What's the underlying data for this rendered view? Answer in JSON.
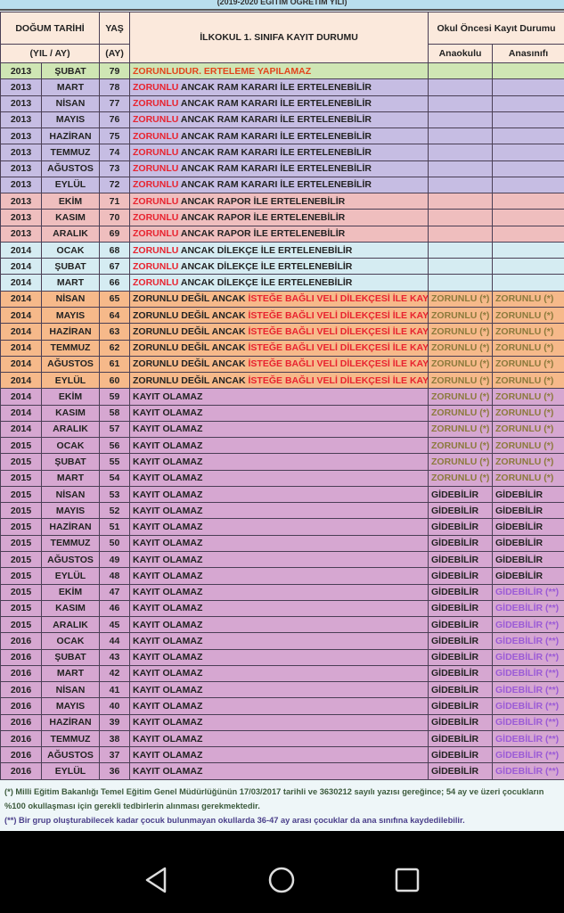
{
  "title": "(2019-2020 EĞİTİM ÖĞRETİM YILI)",
  "header": {
    "birth": "DOĞUM TARİHİ",
    "birth_sub": "(YIL / AY)",
    "age": "YAŞ",
    "age_sub": "(AY)",
    "status": "İLKOKUL 1. SINIFA KAYIT DURUMU",
    "preschool": "Okul Öncesi Kayıt Durumu",
    "kindergarten": "Anaokulu",
    "preclass": "Anasınıfı"
  },
  "colors": {
    "green": "#cfe6b4",
    "purple": "#c6bde3",
    "pink": "#efbebe",
    "blue": "#d5ecf2",
    "orange": "#f6b98a",
    "mauve": "#d6a7d1"
  },
  "rows": [
    {
      "y": "2013",
      "m": "ŞUBAT",
      "a": "79",
      "bg": "green",
      "s": [
        {
          "t": "ZORUNLUDUR. ERTELEME YAPILAMAZ",
          "c": "or"
        }
      ],
      "k": "",
      "p": ""
    },
    {
      "y": "2013",
      "m": "MART",
      "a": "78",
      "bg": "purple",
      "s": [
        {
          "t": "ZORUNLU",
          "c": "red"
        },
        {
          "t": " ANCAK RAM KARARI İLE ERTELENEBİLİR",
          "c": ""
        }
      ],
      "k": "",
      "p": ""
    },
    {
      "y": "2013",
      "m": "NİSAN",
      "a": "77",
      "bg": "purple",
      "s": [
        {
          "t": "ZORUNLU",
          "c": "red"
        },
        {
          "t": " ANCAK RAM KARARI İLE ERTELENEBİLİR",
          "c": ""
        }
      ],
      "k": "",
      "p": ""
    },
    {
      "y": "2013",
      "m": "MAYIS",
      "a": "76",
      "bg": "purple",
      "s": [
        {
          "t": "ZORUNLU",
          "c": "red"
        },
        {
          "t": " ANCAK RAM KARARI İLE ERTELENEBİLİR",
          "c": ""
        }
      ],
      "k": "",
      "p": ""
    },
    {
      "y": "2013",
      "m": "HAZİRAN",
      "a": "75",
      "bg": "purple",
      "s": [
        {
          "t": "ZORUNLU",
          "c": "red"
        },
        {
          "t": " ANCAK RAM KARARI İLE ERTELENEBİLİR",
          "c": ""
        }
      ],
      "k": "",
      "p": ""
    },
    {
      "y": "2013",
      "m": "TEMMUZ",
      "a": "74",
      "bg": "purple",
      "s": [
        {
          "t": "ZORUNLU",
          "c": "red"
        },
        {
          "t": " ANCAK RAM KARARI İLE ERTELENEBİLİR",
          "c": ""
        }
      ],
      "k": "",
      "p": ""
    },
    {
      "y": "2013",
      "m": "AĞUSTOS",
      "a": "73",
      "bg": "purple",
      "s": [
        {
          "t": "ZORUNLU",
          "c": "red"
        },
        {
          "t": " ANCAK RAM KARARI İLE ERTELENEBİLİR",
          "c": ""
        }
      ],
      "k": "",
      "p": ""
    },
    {
      "y": "2013",
      "m": "EYLÜL",
      "a": "72",
      "bg": "purple",
      "s": [
        {
          "t": "ZORUNLU",
          "c": "red"
        },
        {
          "t": " ANCAK RAM KARARI İLE ERTELENEBİLİR",
          "c": ""
        }
      ],
      "k": "",
      "p": ""
    },
    {
      "y": "2013",
      "m": "EKİM",
      "a": "71",
      "bg": "pink",
      "s": [
        {
          "t": "ZORUNLU",
          "c": "red"
        },
        {
          "t": " ANCAK RAPOR İLE ERTELENEBİLİR",
          "c": ""
        }
      ],
      "k": "",
      "p": ""
    },
    {
      "y": "2013",
      "m": "KASIM",
      "a": "70",
      "bg": "pink",
      "s": [
        {
          "t": "ZORUNLU",
          "c": "red"
        },
        {
          "t": " ANCAK RAPOR İLE ERTELENEBİLİR",
          "c": ""
        }
      ],
      "k": "",
      "p": ""
    },
    {
      "y": "2013",
      "m": "ARALIK",
      "a": "69",
      "bg": "pink",
      "s": [
        {
          "t": "ZORUNLU",
          "c": "red"
        },
        {
          "t": " ANCAK RAPOR İLE ERTELENEBİLİR",
          "c": ""
        }
      ],
      "k": "",
      "p": ""
    },
    {
      "y": "2014",
      "m": "OCAK",
      "a": "68",
      "bg": "blue",
      "s": [
        {
          "t": "ZORUNLU",
          "c": "red"
        },
        {
          "t": " ANCAK DİLEKÇE İLE ERTELENEBİLİR",
          "c": ""
        }
      ],
      "k": "",
      "p": ""
    },
    {
      "y": "2014",
      "m": "ŞUBAT",
      "a": "67",
      "bg": "blue",
      "s": [
        {
          "t": "ZORUNLU",
          "c": "red"
        },
        {
          "t": " ANCAK DİLEKÇE İLE ERTELENEBİLİR",
          "c": ""
        }
      ],
      "k": "",
      "p": ""
    },
    {
      "y": "2014",
      "m": "MART",
      "a": "66",
      "bg": "blue",
      "s": [
        {
          "t": "ZORUNLU",
          "c": "red"
        },
        {
          "t": " ANCAK DİLEKÇE İLE ERTELENEBİLİR",
          "c": ""
        }
      ],
      "k": "",
      "p": ""
    },
    {
      "y": "2014",
      "m": "NİSAN",
      "a": "65",
      "bg": "orange",
      "s": [
        {
          "t": "ZORUNLU DEĞİL ANCAK ",
          "c": ""
        },
        {
          "t": "İSTEĞE BAĞLI VELİ DİLEKÇESİ İLE KAYIT",
          "c": "red"
        }
      ],
      "k": "ZORUNLU (*)",
      "p": "ZORUNLU (*)",
      "kc": "ol",
      "pc": "ol"
    },
    {
      "y": "2014",
      "m": "MAYIS",
      "a": "64",
      "bg": "orange",
      "s": [
        {
          "t": "ZORUNLU DEĞİL ANCAK ",
          "c": ""
        },
        {
          "t": "İSTEĞE BAĞLI VELİ DİLEKÇESİ İLE KAYIT",
          "c": "red"
        }
      ],
      "k": "ZORUNLU (*)",
      "p": "ZORUNLU (*)",
      "kc": "ol",
      "pc": "ol"
    },
    {
      "y": "2014",
      "m": "HAZİRAN",
      "a": "63",
      "bg": "orange",
      "s": [
        {
          "t": "ZORUNLU DEĞİL ANCAK ",
          "c": ""
        },
        {
          "t": "İSTEĞE BAĞLI VELİ DİLEKÇESİ İLE KAYIT",
          "c": "red"
        }
      ],
      "k": "ZORUNLU (*)",
      "p": "ZORUNLU (*)",
      "kc": "ol",
      "pc": "ol"
    },
    {
      "y": "2014",
      "m": "TEMMUZ",
      "a": "62",
      "bg": "orange",
      "s": [
        {
          "t": "ZORUNLU DEĞİL ANCAK ",
          "c": ""
        },
        {
          "t": "İSTEĞE BAĞLI VELİ DİLEKÇESİ İLE KAYIT",
          "c": "red"
        }
      ],
      "k": "ZORUNLU (*)",
      "p": "ZORUNLU (*)",
      "kc": "ol",
      "pc": "ol"
    },
    {
      "y": "2014",
      "m": "AĞUSTOS",
      "a": "61",
      "bg": "orange",
      "s": [
        {
          "t": "ZORUNLU DEĞİL ANCAK ",
          "c": ""
        },
        {
          "t": "İSTEĞE BAĞLI VELİ DİLEKÇESİ İLE KAYIT",
          "c": "red"
        }
      ],
      "k": "ZORUNLU (*)",
      "p": "ZORUNLU (*)",
      "kc": "ol",
      "pc": "ol"
    },
    {
      "y": "2014",
      "m": "EYLÜL",
      "a": "60",
      "bg": "orange",
      "s": [
        {
          "t": "ZORUNLU DEĞİL ANCAK ",
          "c": ""
        },
        {
          "t": "İSTEĞE BAĞLI VELİ DİLEKÇESİ İLE KAYIT",
          "c": "red"
        }
      ],
      "k": "ZORUNLU (*)",
      "p": "ZORUNLU (*)",
      "kc": "ol",
      "pc": "ol"
    },
    {
      "y": "2014",
      "m": "EKİM",
      "a": "59",
      "bg": "mauve",
      "s": [
        {
          "t": "KAYIT OLAMAZ",
          "c": ""
        }
      ],
      "k": "ZORUNLU (*)",
      "p": "ZORUNLU (*)",
      "kc": "ol",
      "pc": "ol"
    },
    {
      "y": "2014",
      "m": "KASIM",
      "a": "58",
      "bg": "mauve",
      "s": [
        {
          "t": "KAYIT OLAMAZ",
          "c": ""
        }
      ],
      "k": "ZORUNLU (*)",
      "p": "ZORUNLU (*)",
      "kc": "ol",
      "pc": "ol"
    },
    {
      "y": "2014",
      "m": "ARALIK",
      "a": "57",
      "bg": "mauve",
      "s": [
        {
          "t": "KAYIT OLAMAZ",
          "c": ""
        }
      ],
      "k": "ZORUNLU (*)",
      "p": "ZORUNLU (*)",
      "kc": "ol",
      "pc": "ol"
    },
    {
      "y": "2015",
      "m": "OCAK",
      "a": "56",
      "bg": "mauve",
      "s": [
        {
          "t": "KAYIT OLAMAZ",
          "c": ""
        }
      ],
      "k": "ZORUNLU (*)",
      "p": "ZORUNLU (*)",
      "kc": "ol",
      "pc": "ol"
    },
    {
      "y": "2015",
      "m": "ŞUBAT",
      "a": "55",
      "bg": "mauve",
      "s": [
        {
          "t": "KAYIT OLAMAZ",
          "c": ""
        }
      ],
      "k": "ZORUNLU (*)",
      "p": "ZORUNLU (*)",
      "kc": "ol",
      "pc": "ol"
    },
    {
      "y": "2015",
      "m": "MART",
      "a": "54",
      "bg": "mauve",
      "s": [
        {
          "t": "KAYIT OLAMAZ",
          "c": ""
        }
      ],
      "k": "ZORUNLU (*)",
      "p": "ZORUNLU (*)",
      "kc": "ol",
      "pc": "ol"
    },
    {
      "y": "2015",
      "m": "NİSAN",
      "a": "53",
      "bg": "mauve",
      "s": [
        {
          "t": "KAYIT OLAMAZ",
          "c": ""
        }
      ],
      "k": "GİDEBİLİR",
      "p": "GİDEBİLİR"
    },
    {
      "y": "2015",
      "m": "MAYIS",
      "a": "52",
      "bg": "mauve",
      "s": [
        {
          "t": "KAYIT OLAMAZ",
          "c": ""
        }
      ],
      "k": "GİDEBİLİR",
      "p": "GİDEBİLİR"
    },
    {
      "y": "2015",
      "m": "HAZİRAN",
      "a": "51",
      "bg": "mauve",
      "s": [
        {
          "t": "KAYIT OLAMAZ",
          "c": ""
        }
      ],
      "k": "GİDEBİLİR",
      "p": "GİDEBİLİR"
    },
    {
      "y": "2015",
      "m": "TEMMUZ",
      "a": "50",
      "bg": "mauve",
      "s": [
        {
          "t": "KAYIT OLAMAZ",
          "c": ""
        }
      ],
      "k": "GİDEBİLİR",
      "p": "GİDEBİLİR"
    },
    {
      "y": "2015",
      "m": "AĞUSTOS",
      "a": "49",
      "bg": "mauve",
      "s": [
        {
          "t": "KAYIT OLAMAZ",
          "c": ""
        }
      ],
      "k": "GİDEBİLİR",
      "p": "GİDEBİLİR"
    },
    {
      "y": "2015",
      "m": "EYLÜL",
      "a": "48",
      "bg": "mauve",
      "s": [
        {
          "t": "KAYIT OLAMAZ",
          "c": ""
        }
      ],
      "k": "GİDEBİLİR",
      "p": "GİDEBİLİR"
    },
    {
      "y": "2015",
      "m": "EKİM",
      "a": "47",
      "bg": "mauve",
      "s": [
        {
          "t": "KAYIT OLAMAZ",
          "c": ""
        }
      ],
      "k": "GİDEBİLİR",
      "p": "GİDEBİLİR (**)",
      "pc": "pu"
    },
    {
      "y": "2015",
      "m": "KASIM",
      "a": "46",
      "bg": "mauve",
      "s": [
        {
          "t": "KAYIT OLAMAZ",
          "c": ""
        }
      ],
      "k": "GİDEBİLİR",
      "p": "GİDEBİLİR (**)",
      "pc": "pu"
    },
    {
      "y": "2015",
      "m": "ARALIK",
      "a": "45",
      "bg": "mauve",
      "s": [
        {
          "t": "KAYIT OLAMAZ",
          "c": ""
        }
      ],
      "k": "GİDEBİLİR",
      "p": "GİDEBİLİR (**)",
      "pc": "pu"
    },
    {
      "y": "2016",
      "m": "OCAK",
      "a": "44",
      "bg": "mauve",
      "s": [
        {
          "t": "KAYIT OLAMAZ",
          "c": ""
        }
      ],
      "k": "GİDEBİLİR",
      "p": "GİDEBİLİR (**)",
      "pc": "pu"
    },
    {
      "y": "2016",
      "m": "ŞUBAT",
      "a": "43",
      "bg": "mauve",
      "s": [
        {
          "t": "KAYIT OLAMAZ",
          "c": ""
        }
      ],
      "k": "GİDEBİLİR",
      "p": "GİDEBİLİR (**)",
      "pc": "pu"
    },
    {
      "y": "2016",
      "m": "MART",
      "a": "42",
      "bg": "mauve",
      "s": [
        {
          "t": "KAYIT OLAMAZ",
          "c": ""
        }
      ],
      "k": "GİDEBİLİR",
      "p": "GİDEBİLİR (**)",
      "pc": "pu"
    },
    {
      "y": "2016",
      "m": "NİSAN",
      "a": "41",
      "bg": "mauve",
      "s": [
        {
          "t": "KAYIT OLAMAZ",
          "c": ""
        }
      ],
      "k": "GİDEBİLİR",
      "p": "GİDEBİLİR (**)",
      "pc": "pu"
    },
    {
      "y": "2016",
      "m": "MAYIS",
      "a": "40",
      "bg": "mauve",
      "s": [
        {
          "t": "KAYIT OLAMAZ",
          "c": ""
        }
      ],
      "k": "GİDEBİLİR",
      "p": "GİDEBİLİR (**)",
      "pc": "pu"
    },
    {
      "y": "2016",
      "m": "HAZİRAN",
      "a": "39",
      "bg": "mauve",
      "s": [
        {
          "t": "KAYIT OLAMAZ",
          "c": ""
        }
      ],
      "k": "GİDEBİLİR",
      "p": "GİDEBİLİR (**)",
      "pc": "pu"
    },
    {
      "y": "2016",
      "m": "TEMMUZ",
      "a": "38",
      "bg": "mauve",
      "s": [
        {
          "t": "KAYIT OLAMAZ",
          "c": ""
        }
      ],
      "k": "GİDEBİLİR",
      "p": "GİDEBİLİR (**)",
      "pc": "pu"
    },
    {
      "y": "2016",
      "m": "AĞUSTOS",
      "a": "37",
      "bg": "mauve",
      "s": [
        {
          "t": "KAYIT OLAMAZ",
          "c": ""
        }
      ],
      "k": "GİDEBİLİR",
      "p": "GİDEBİLİR (**)",
      "pc": "pu"
    },
    {
      "y": "2016",
      "m": "EYLÜL",
      "a": "36",
      "bg": "mauve",
      "s": [
        {
          "t": "KAYIT OLAMAZ",
          "c": ""
        }
      ],
      "k": "GİDEBİLİR",
      "p": "GİDEBİLİR (**)",
      "pc": "pu"
    }
  ],
  "footnotes": {
    "one": "(*) Milli Eğitim Bakanlığı Temel Eğitim Genel Müdürlüğünün 17/03/2017 tarihli ve 3630212 sayılı yazısı gereğince; 54 ay ve üzeri çocukların %100 okullaşması için gerekli tedbirlerin alınması gerekmektedir.",
    "two": "(**) Bir grup oluşturabilecek kadar çocuk bulunmayan okullarda 36-47 ay arası çocuklar da ana sınıfına kaydedilebilir."
  },
  "nav": {
    "back": "back-icon",
    "home": "home-icon",
    "recents": "recents-icon"
  }
}
